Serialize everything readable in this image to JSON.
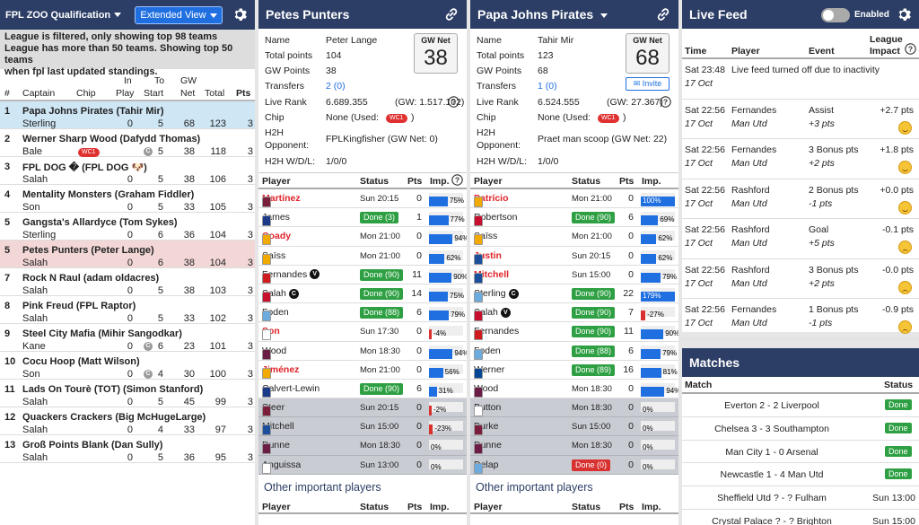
{
  "league": {
    "title": "FPL ZOO Qualification",
    "view_button": "Extended View",
    "notice": [
      "League is filtered, only showing top 98 teams",
      "League has more than 50 teams. Showing top 50 teams",
      "when fpl last updated standings."
    ],
    "headers": {
      "rank": "#",
      "captain": "Captain",
      "chip": "Chip",
      "in_play_1": "In",
      "in_play_2": "Play",
      "to_start_1": "To",
      "to_start_2": "Start",
      "gw_net_1": "GW",
      "gw_net_2": "Net",
      "total": "Total",
      "pts": "Pts"
    },
    "rows": [
      {
        "rank": "1",
        "team": "Papa Johns Pirates (Tahir Mir)",
        "captain": "Sterling",
        "chip": "",
        "in_play": "0",
        "to_start": "5",
        "gw_net": "68",
        "total": "123",
        "pts": "3",
        "cc": false,
        "hl": "hl1"
      },
      {
        "rank": "2",
        "team": "Werner Sharp Wood (Dafydd Thomas)",
        "captain": "Bale",
        "chip": "WC1",
        "in_play": "",
        "to_start": "5",
        "gw_net": "38",
        "total": "118",
        "pts": "3",
        "cc": true,
        "hl": ""
      },
      {
        "rank": "3",
        "team": "FPL DOG � (FPL DOG 🐶)",
        "captain": "Salah",
        "chip": "",
        "in_play": "0",
        "to_start": "5",
        "gw_net": "38",
        "total": "106",
        "pts": "3",
        "cc": false,
        "hl": ""
      },
      {
        "rank": "4",
        "team": "Mentality Monsters (Graham Fiddler)",
        "captain": "Son",
        "chip": "",
        "in_play": "0",
        "to_start": "5",
        "gw_net": "33",
        "total": "105",
        "pts": "3",
        "cc": false,
        "hl": ""
      },
      {
        "rank": "5",
        "team": "Gangsta's Allardyce (Tom Sykes)",
        "captain": "Sterling",
        "chip": "",
        "in_play": "0",
        "to_start": "6",
        "gw_net": "36",
        "total": "104",
        "pts": "3",
        "cc": false,
        "hl": ""
      },
      {
        "rank": "5",
        "team": "Petes Punters (Peter Lange)",
        "captain": "Salah",
        "chip": "",
        "in_play": "0",
        "to_start": "6",
        "gw_net": "38",
        "total": "104",
        "pts": "3",
        "cc": false,
        "hl": "hl2"
      },
      {
        "rank": "7",
        "team": "Rock N Raul (adam oldacres)",
        "captain": "Salah",
        "chip": "",
        "in_play": "0",
        "to_start": "5",
        "gw_net": "38",
        "total": "103",
        "pts": "3",
        "cc": false,
        "hl": ""
      },
      {
        "rank": "8",
        "team": "Pink Freud (FPL Raptor)",
        "captain": "Salah",
        "chip": "",
        "in_play": "0",
        "to_start": "5",
        "gw_net": "33",
        "total": "102",
        "pts": "3",
        "cc": false,
        "hl": ""
      },
      {
        "rank": "9",
        "team": "Steel City Mafia (Mihir Sangodkar)",
        "captain": "Kane",
        "chip": "",
        "in_play": "0",
        "to_start": "6",
        "gw_net": "23",
        "total": "101",
        "pts": "3",
        "cc": true,
        "hl": ""
      },
      {
        "rank": "10",
        "team": "Cocu Hoop (Matt Wilson)",
        "captain": "Son",
        "chip": "",
        "in_play": "0",
        "to_start": "4",
        "gw_net": "30",
        "total": "100",
        "pts": "3",
        "cc": true,
        "hl": ""
      },
      {
        "rank": "11",
        "team": "Lads On Tourè (TOT) (Simon Stanford)",
        "captain": "Salah",
        "chip": "",
        "in_play": "0",
        "to_start": "5",
        "gw_net": "45",
        "total": "99",
        "pts": "3",
        "cc": false,
        "hl": ""
      },
      {
        "rank": "12",
        "team": "Quackers Crackers (Big McHugeLarge)",
        "captain": "Salah",
        "chip": "",
        "in_play": "0",
        "to_start": "4",
        "gw_net": "33",
        "total": "97",
        "pts": "3",
        "cc": false,
        "hl": ""
      },
      {
        "rank": "13",
        "team": "Groß Points Blank (Dan Sully)",
        "captain": "Salah",
        "chip": "",
        "in_play": "0",
        "to_start": "5",
        "gw_net": "36",
        "total": "95",
        "pts": "3",
        "cc": false,
        "hl": ""
      }
    ]
  },
  "team1": {
    "title": "Petes Punters",
    "labels": {
      "name": "Name",
      "total": "Total points",
      "gw": "GW Points",
      "transfers": "Transfers",
      "rank": "Live Rank",
      "chip": "Chip",
      "h2h1": "H2H",
      "h2h2": "Opponent:",
      "wdl": "H2H W/D/L:",
      "gwnet": "GW Net"
    },
    "name": "Peter Lange",
    "total": "104",
    "gw": "38",
    "transfers": "2 (0)",
    "rank": "6.689.355",
    "rank_gw": "(GW: 1.517.102)",
    "chip": "None (Used:",
    "chip_badge": "WC1",
    "chip_end": ")",
    "opponent": "FPLKingfisher (GW Net: 0)",
    "wdl": "1/0/0",
    "gwnet": "38",
    "players": [
      {
        "name": "Martínez",
        "red": true,
        "status": "Sun 20:15",
        "done": false,
        "pts": "0",
        "imp": "75%",
        "fill": 75,
        "neg": false,
        "bench": false,
        "col": "#7a1e3c",
        "vc": ""
      },
      {
        "name": "James",
        "red": false,
        "status": "Done (3)",
        "done": true,
        "pts": "1",
        "imp": "77%",
        "fill": 77,
        "neg": false,
        "bench": false,
        "col": "#1b3b8a",
        "vc": ""
      },
      {
        "name": "Coady",
        "red": true,
        "status": "Mon 21:00",
        "done": false,
        "pts": "0",
        "imp": "94%",
        "fill": 94,
        "neg": false,
        "bench": false,
        "col": "#f2a900",
        "vc": ""
      },
      {
        "name": "Saïss",
        "red": false,
        "status": "Mon 21:00",
        "done": false,
        "pts": "0",
        "imp": "62%",
        "fill": 62,
        "neg": false,
        "bench": false,
        "col": "#f2a900",
        "vc": ""
      },
      {
        "name": "Fernandes",
        "red": false,
        "status": "Done (90)",
        "done": true,
        "pts": "11",
        "imp": "90%",
        "fill": 90,
        "neg": false,
        "bench": false,
        "col": "#d01c1f",
        "vc": "V"
      },
      {
        "name": "Salah",
        "red": false,
        "status": "Done (90)",
        "done": true,
        "pts": "14",
        "imp": "75%",
        "fill": 75,
        "neg": false,
        "bench": false,
        "col": "#c8102e",
        "vc": "C"
      },
      {
        "name": "Foden",
        "red": false,
        "status": "Done (88)",
        "done": true,
        "pts": "6",
        "imp": "79%",
        "fill": 79,
        "neg": false,
        "bench": false,
        "col": "#6cabdd",
        "vc": ""
      },
      {
        "name": "Son",
        "red": true,
        "status": "Sun 17:30",
        "done": false,
        "pts": "0",
        "imp": "-4%",
        "fill": 4,
        "neg": true,
        "bench": false,
        "col": "#ffffff",
        "vc": ""
      },
      {
        "name": "Wood",
        "red": false,
        "status": "Mon 18:30",
        "done": false,
        "pts": "0",
        "imp": "94%",
        "fill": 94,
        "neg": false,
        "bench": false,
        "col": "#6c1d45",
        "vc": ""
      },
      {
        "name": "Jiménez",
        "red": true,
        "status": "Mon 21:00",
        "done": false,
        "pts": "0",
        "imp": "56%",
        "fill": 56,
        "neg": false,
        "bench": false,
        "col": "#f2a900",
        "vc": ""
      },
      {
        "name": "Calvert-Lewin",
        "red": false,
        "status": "Done (90)",
        "done": true,
        "pts": "6",
        "imp": "31%",
        "fill": 31,
        "neg": false,
        "bench": false,
        "col": "#1b3b8a",
        "vc": ""
      },
      {
        "name": "Steer",
        "red": false,
        "status": "Sun 20:15",
        "done": false,
        "pts": "0",
        "imp": "-2%",
        "fill": 2,
        "neg": true,
        "bench": true,
        "col": "#7a1e3c",
        "vc": ""
      },
      {
        "name": "Mitchell",
        "red": false,
        "status": "Sun 15:00",
        "done": false,
        "pts": "0",
        "imp": "-23%",
        "fill": 23,
        "neg": true,
        "bench": true,
        "col": "#1b4f9c",
        "vc": ""
      },
      {
        "name": "Dunne",
        "red": false,
        "status": "Mon 18:30",
        "done": false,
        "pts": "0",
        "imp": "0%",
        "fill": 0,
        "neg": false,
        "bench": true,
        "col": "#6c1d45",
        "vc": ""
      },
      {
        "name": "Anguissa",
        "red": false,
        "status": "Sun 13:00",
        "done": false,
        "pts": "0",
        "imp": "0%",
        "fill": 0,
        "neg": false,
        "bench": true,
        "col": "#ffffff",
        "vc": ""
      }
    ]
  },
  "team2": {
    "title": "Papa Johns Pirates",
    "labels": {
      "name": "Name",
      "total": "Total points",
      "gw": "GW Points",
      "transfers": "Transfers",
      "rank": "Live Rank",
      "chip": "Chip",
      "h2h1": "H2H",
      "h2h2": "Opponent:",
      "wdl": "H2H W/D/L:",
      "gwnet": "GW Net",
      "invite": "Invite"
    },
    "name": "Tahir Mir",
    "total": "123",
    "gw": "68",
    "transfers": "1 (0)",
    "rank": "6.524.555",
    "rank_gw": "(GW: 27.367)",
    "chip": "None (Used:",
    "chip_badge": "WC1",
    "chip_end": ")",
    "opponent": "Praet man scoop (GW Net: 22)",
    "wdl": "1/0/0",
    "gwnet": "68",
    "players": [
      {
        "name": "Patrício",
        "red": true,
        "status": "Mon 21:00",
        "done": false,
        "pts": "0",
        "imp": "100%",
        "fill": 100,
        "neg": false,
        "bench": false,
        "col": "#f2a900",
        "vc": ""
      },
      {
        "name": "Robertson",
        "red": false,
        "status": "Done (90)",
        "done": true,
        "pts": "6",
        "imp": "69%",
        "fill": 69,
        "neg": false,
        "bench": false,
        "col": "#c8102e",
        "vc": ""
      },
      {
        "name": "Saïss",
        "red": false,
        "status": "Mon 21:00",
        "done": false,
        "pts": "0",
        "imp": "62%",
        "fill": 62,
        "neg": false,
        "bench": false,
        "col": "#f2a900",
        "vc": ""
      },
      {
        "name": "Justin",
        "red": true,
        "status": "Sun 20:15",
        "done": false,
        "pts": "0",
        "imp": "62%",
        "fill": 62,
        "neg": false,
        "bench": false,
        "col": "#1b4f9c",
        "vc": ""
      },
      {
        "name": "Mitchell",
        "red": true,
        "status": "Sun 15:00",
        "done": false,
        "pts": "0",
        "imp": "79%",
        "fill": 79,
        "neg": false,
        "bench": false,
        "col": "#1b4f9c",
        "vc": ""
      },
      {
        "name": "Sterling",
        "red": false,
        "status": "Done (90)",
        "done": true,
        "pts": "22",
        "imp": "179%",
        "fill": 100,
        "neg": false,
        "bench": false,
        "col": "#6cabdd",
        "vc": "C"
      },
      {
        "name": "Salah",
        "red": false,
        "status": "Done (90)",
        "done": true,
        "pts": "7",
        "imp": "-27%",
        "fill": 27,
        "neg": true,
        "bench": false,
        "col": "#c8102e",
        "vc": "V"
      },
      {
        "name": "Fernandes",
        "red": false,
        "status": "Done (90)",
        "done": true,
        "pts": "11",
        "imp": "90%",
        "fill": 90,
        "neg": false,
        "bench": false,
        "col": "#d01c1f",
        "vc": ""
      },
      {
        "name": "Foden",
        "red": false,
        "status": "Done (88)",
        "done": true,
        "pts": "6",
        "imp": "79%",
        "fill": 79,
        "neg": false,
        "bench": false,
        "col": "#6cabdd",
        "vc": ""
      },
      {
        "name": "Werner",
        "red": false,
        "status": "Done (89)",
        "done": true,
        "pts": "16",
        "imp": "81%",
        "fill": 81,
        "neg": false,
        "bench": false,
        "col": "#034694",
        "vc": ""
      },
      {
        "name": "Wood",
        "red": false,
        "status": "Mon 18:30",
        "done": false,
        "pts": "0",
        "imp": "94%",
        "fill": 94,
        "neg": false,
        "bench": false,
        "col": "#6c1d45",
        "vc": ""
      },
      {
        "name": "Button",
        "red": false,
        "status": "Mon 18:30",
        "done": false,
        "pts": "0",
        "imp": "0%",
        "fill": 0,
        "neg": false,
        "bench": true,
        "col": "#ffffff",
        "vc": ""
      },
      {
        "name": "Burke",
        "red": false,
        "status": "Sun 15:00",
        "done": false,
        "pts": "0",
        "imp": "0%",
        "fill": 0,
        "neg": false,
        "bench": true,
        "col": "#7a1e3c",
        "vc": ""
      },
      {
        "name": "Dunne",
        "red": false,
        "status": "Mon 18:30",
        "done": false,
        "pts": "0",
        "imp": "0%",
        "fill": 0,
        "neg": false,
        "bench": true,
        "col": "#6c1d45",
        "vc": ""
      },
      {
        "name": "Delap",
        "red": false,
        "status": "Done (0)",
        "done": false,
        "redstatus": true,
        "pts": "0",
        "imp": "0%",
        "fill": 0,
        "neg": false,
        "bench": true,
        "col": "#6cabdd",
        "vc": ""
      }
    ]
  },
  "player_headers": {
    "player": "Player",
    "status": "Status",
    "pts": "Pts",
    "imp": "Imp."
  },
  "other_title": "Other important players",
  "feed": {
    "title": "Live Feed",
    "enabled": "Enabled",
    "headers": {
      "time": "Time",
      "player": "Player",
      "event": "Event",
      "impact1": "League",
      "impact2": "Impact"
    },
    "rows": [
      {
        "time": "Sat 23:48",
        "date": "17 Oct",
        "player": "",
        "text": "Live feed turned off due to inactivity",
        "team": "",
        "event": "",
        "sub": "",
        "impact": "",
        "face": ""
      },
      {
        "time": "Sat 22:56",
        "date": "17 Oct",
        "player": "Fernandes",
        "text": "",
        "team": "Man Utd",
        "event": "Assist",
        "sub": "+3 pts",
        "impact": "+2.7 pts",
        "face": "smile"
      },
      {
        "time": "Sat 22:56",
        "date": "17 Oct",
        "player": "Fernandes",
        "text": "",
        "team": "Man Utd",
        "event": "3 Bonus pts",
        "sub": "+2 pts",
        "impact": "+1.8 pts",
        "face": "smile"
      },
      {
        "time": "Sat 22:56",
        "date": "17 Oct",
        "player": "Rashford",
        "text": "",
        "team": "Man Utd",
        "event": "2 Bonus pts",
        "sub": "-1 pts",
        "impact": "+0.0 pts",
        "face": "smile"
      },
      {
        "time": "Sat 22:56",
        "date": "17 Oct",
        "player": "Rashford",
        "text": "",
        "team": "Man Utd",
        "event": "Goal",
        "sub": "+5 pts",
        "impact": "-0.1 pts",
        "face": "frown"
      },
      {
        "time": "Sat 22:56",
        "date": "17 Oct",
        "player": "Rashford",
        "text": "",
        "team": "Man Utd",
        "event": "3 Bonus pts",
        "sub": "+2 pts",
        "impact": "-0.0 pts",
        "face": "frown"
      },
      {
        "time": "Sat 22:56",
        "date": "17 Oct",
        "player": "Fernandes",
        "text": "",
        "team": "Man Utd",
        "event": "1 Bonus pts",
        "sub": "-1 pts",
        "impact": "-0.9 pts",
        "face": "frown"
      }
    ]
  },
  "matches": {
    "title": "Matches",
    "headers": {
      "match": "Match",
      "status": "Status"
    },
    "rows": [
      {
        "match": "Everton 2 - 2 Liverpool",
        "status": "Done",
        "done": true
      },
      {
        "match": "Chelsea 3 - 3 Southampton",
        "status": "Done",
        "done": true
      },
      {
        "match": "Man City 1 - 0 Arsenal",
        "status": "Done",
        "done": true
      },
      {
        "match": "Newcastle 1 - 4 Man Utd",
        "status": "Done",
        "done": true
      },
      {
        "match": "Sheffield Utd ? - ? Fulham",
        "status": "Sun 13:00",
        "done": false
      },
      {
        "match": "Crystal Palace ? - ? Brighton",
        "status": "Sun 15:00",
        "done": false
      }
    ]
  }
}
